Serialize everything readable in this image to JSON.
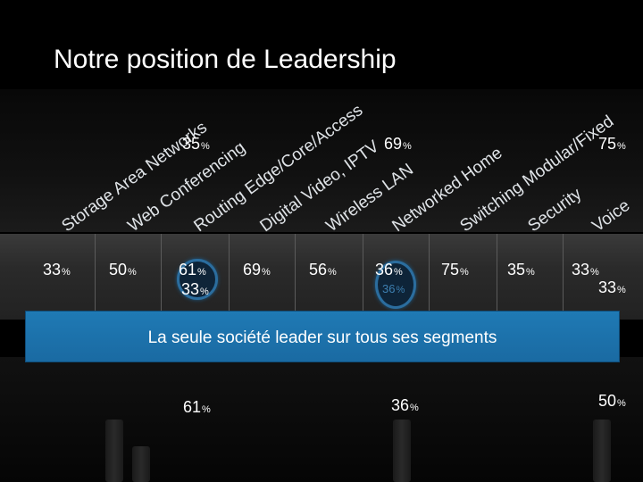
{
  "slide": {
    "title": "Notre position de Leadership",
    "banner": "La seule société leader sur tous ses segments"
  },
  "categories": [
    "Storage Area Networks",
    "Web Conferencing",
    "Routing Edge/Core/Access",
    "Digital Video, IPTV",
    "Wireless LAN",
    "Networked Home",
    "Switching Modular/Fixed",
    "Security",
    "Voice"
  ],
  "top_values": [
    "35",
    "69",
    "75"
  ],
  "row_values": [
    "33",
    "50",
    "61",
    "69",
    "56",
    "36",
    "75",
    "35",
    "33"
  ],
  "overlap_values": [
    "33",
    "33",
    "36"
  ],
  "bottom_values": [
    "61",
    "36",
    "50"
  ],
  "percent_sign": "%",
  "colors": {
    "banner": "#1f7ab5",
    "ring": "#2b6d9e"
  }
}
